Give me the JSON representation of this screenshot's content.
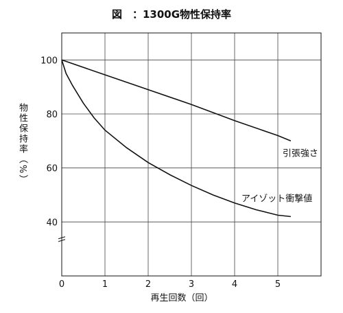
{
  "chart_data": {
    "type": "line",
    "title": "図　：1300G物性保持率",
    "xlabel": "再生回数（回）",
    "ylabel": "物性保持率（%）",
    "xlim": [
      0,
      6
    ],
    "ylim": [
      20,
      110
    ],
    "xticks": [
      0,
      1,
      2,
      3,
      4,
      5
    ],
    "yticks": [
      40,
      60,
      80,
      100
    ],
    "grid": true,
    "series": [
      {
        "name": "引張強さ",
        "x": [
          0,
          1,
          2,
          3,
          4,
          5,
          5.3
        ],
        "y": [
          100,
          94.5,
          89,
          83.5,
          77.5,
          72,
          70
        ]
      },
      {
        "name": "アイゾット衝撃値",
        "x": [
          0,
          0.1,
          0.25,
          0.5,
          0.75,
          1,
          1.5,
          2,
          2.5,
          3,
          3.5,
          4,
          4.5,
          5,
          5.3
        ],
        "y": [
          100,
          95,
          90.5,
          84,
          78.5,
          74,
          67.5,
          62,
          57.5,
          53.5,
          50,
          47,
          44.5,
          42.5,
          42
        ]
      }
    ]
  }
}
